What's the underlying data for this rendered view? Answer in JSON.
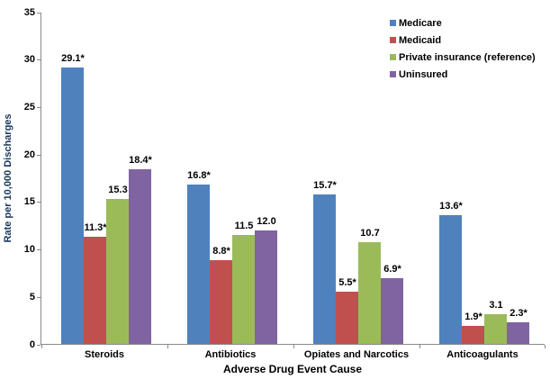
{
  "chart_data": {
    "type": "bar",
    "title": "",
    "xlabel": "Adverse Drug Event Cause",
    "ylabel": "Rate per 10,000 Discharges",
    "categories": [
      "Steroids",
      "Antibiotics",
      "Opiates and Narcotics",
      "Anticoagulants"
    ],
    "series": [
      {
        "name": "Medicare",
        "color": "#4F81BD",
        "values": [
          29.1,
          16.8,
          15.7,
          13.6
        ],
        "labels": [
          "29.1*",
          "16.8*",
          "15.7*",
          "13.6*"
        ]
      },
      {
        "name": "Medicaid",
        "color": "#C0504D",
        "values": [
          11.3,
          8.8,
          5.5,
          1.9
        ],
        "labels": [
          "11.3*",
          "8.8*",
          "5.5*",
          "1.9*"
        ]
      },
      {
        "name": "Private insurance (reference)",
        "color": "#9BBB59",
        "values": [
          15.3,
          11.5,
          10.7,
          3.1
        ],
        "labels": [
          "15.3",
          "11.5",
          "10.7",
          "3.1"
        ]
      },
      {
        "name": "Uninsured",
        "color": "#8064A2",
        "values": [
          18.4,
          12.0,
          6.9,
          2.3
        ],
        "labels": [
          "18.4*",
          "12.0",
          "6.9*",
          "2.3*"
        ]
      }
    ],
    "ylim": [
      0,
      35
    ],
    "yticks": [
      0,
      5,
      10,
      15,
      20,
      25,
      30,
      35
    ],
    "grid": false,
    "legend_position": "top-right"
  },
  "style": {
    "axis_color": "#898989",
    "ylabel_color": "#17375E",
    "text_color": "#000000",
    "background": "#FFFFFF"
  }
}
